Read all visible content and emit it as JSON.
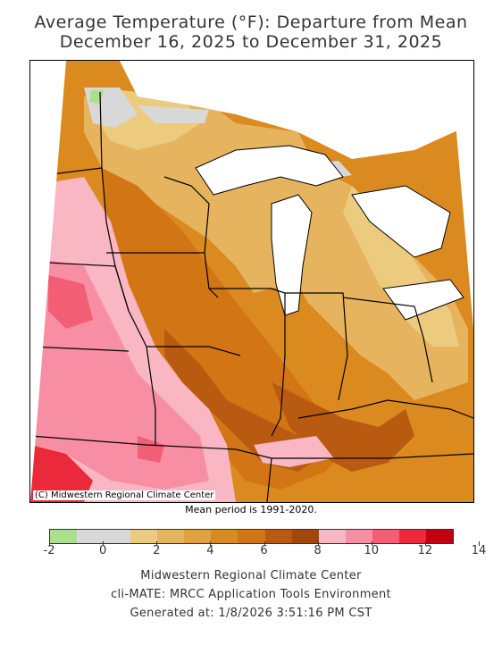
{
  "title_line1": "Average Temperature (°F): Departure from Mean",
  "title_line2": "December 16, 2025 to December 31, 2025",
  "copyright": "(C) Midwestern Regional Climate Center",
  "mean_note": "Mean period is 1991-2020.",
  "legend": {
    "colors": [
      "#a8e08c",
      "#d8d8d8",
      "#d8d8d8",
      "#eccb7f",
      "#e6b45e",
      "#e2a03f",
      "#db8a1f",
      "#d27514",
      "#b85a10",
      "#a24708",
      "#f9b6c3",
      "#f78ea3",
      "#f25e74",
      "#ea2a3a",
      "#c30012"
    ],
    "ticks": [
      "-2",
      "0",
      "2",
      "4",
      "6",
      "8",
      "10",
      "12",
      "14"
    ]
  },
  "footer": {
    "line1": "Midwestern Regional Climate Center",
    "line2": "cli-MATE: MRCC Application Tools Environment",
    "line3": "Generated at: 1/8/2026 3:51:16 PM CST"
  },
  "colors": {
    "gray": "#d8d8d8",
    "light_orange": "#eccb7f",
    "orange_4": "#e2a03f",
    "orange_6": "#db8a1f",
    "orange_7": "#d27514",
    "orange_8": "#b85a10",
    "pink_10": "#f9b6c3",
    "pink_12": "#f25e74",
    "red_14": "#ea2a3a",
    "green": "#a8e08c",
    "water": "#ffffff"
  }
}
